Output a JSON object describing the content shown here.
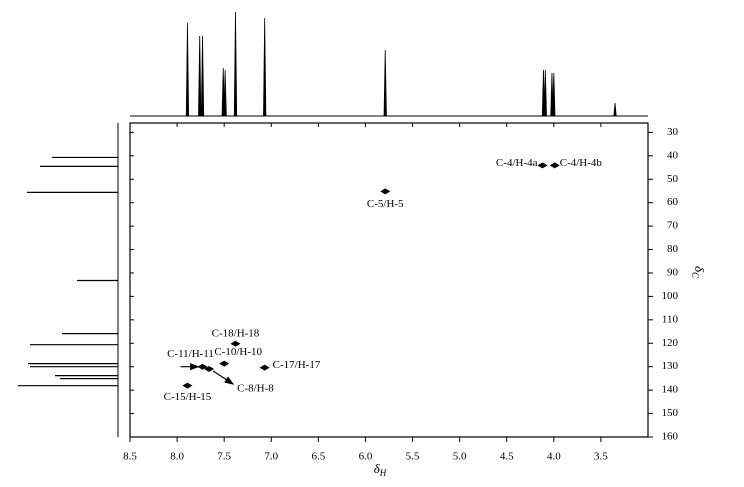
{
  "chart_data": {
    "type": "hsqc",
    "x_label": {
      "symbol": "δ",
      "sub": "H"
    },
    "y_label": {
      "symbol": "δ",
      "sub": "C"
    },
    "xlim": [
      8.5,
      3.0
    ],
    "ylim": [
      26,
      160
    ],
    "xticks": [
      8.5,
      {
        "value": 8,
        "label": "8.0"
      },
      7.5,
      {
        "value": 7,
        "label": "7.0"
      },
      6.5,
      {
        "value": 6,
        "label": "6.0"
      },
      5.5,
      {
        "value": 5,
        "label": "5.0"
      },
      4.5,
      {
        "value": 4,
        "label": "4.0"
      },
      3.5
    ],
    "yticks": [
      30,
      40,
      50,
      60,
      70,
      80,
      90,
      100,
      110,
      120,
      130,
      140,
      150,
      160
    ],
    "peaks": [
      {
        "label": "C-4/H-4a",
        "h": 4.12,
        "c": 44.1
      },
      {
        "label": "C-4/H-4b",
        "h": 3.99,
        "c": 44.1
      },
      {
        "label": "C-5/H-5",
        "h": 5.79,
        "c": 55.2
      },
      {
        "label": "C-18/H-18",
        "h": 7.38,
        "c": 120.2
      },
      {
        "label": "C-10/H-10",
        "h": 7.5,
        "c": 128.7
      },
      {
        "label": "C-17/H-17",
        "h": 7.07,
        "c": 130.4
      },
      {
        "label": "C-11/H-11",
        "h": 7.73,
        "c": 130
      },
      {
        "label": "C-8/H-8",
        "h": 7.66,
        "c": 131
      },
      {
        "label": "C-15/H-15",
        "h": 7.89,
        "c": 138.1
      }
    ],
    "h_projection": {
      "x": [
        7.89,
        7.76,
        7.73,
        7.51,
        7.49,
        7.38,
        7.07,
        5.79,
        4.11,
        4.09,
        4.02,
        4.0,
        3.35
      ],
      "intensity": [
        93,
        80,
        80,
        48,
        46,
        104,
        98,
        66,
        46,
        46,
        43,
        43,
        13
      ]
    },
    "c_projection": {
      "y": [
        40.7,
        44.5,
        55.6,
        93.2,
        115.9,
        120.6,
        128.7,
        130,
        133.8,
        135.1,
        138.1
      ],
      "intensity": [
        66,
        78,
        91,
        41,
        56,
        88,
        90,
        88,
        63,
        58,
        100
      ]
    }
  }
}
